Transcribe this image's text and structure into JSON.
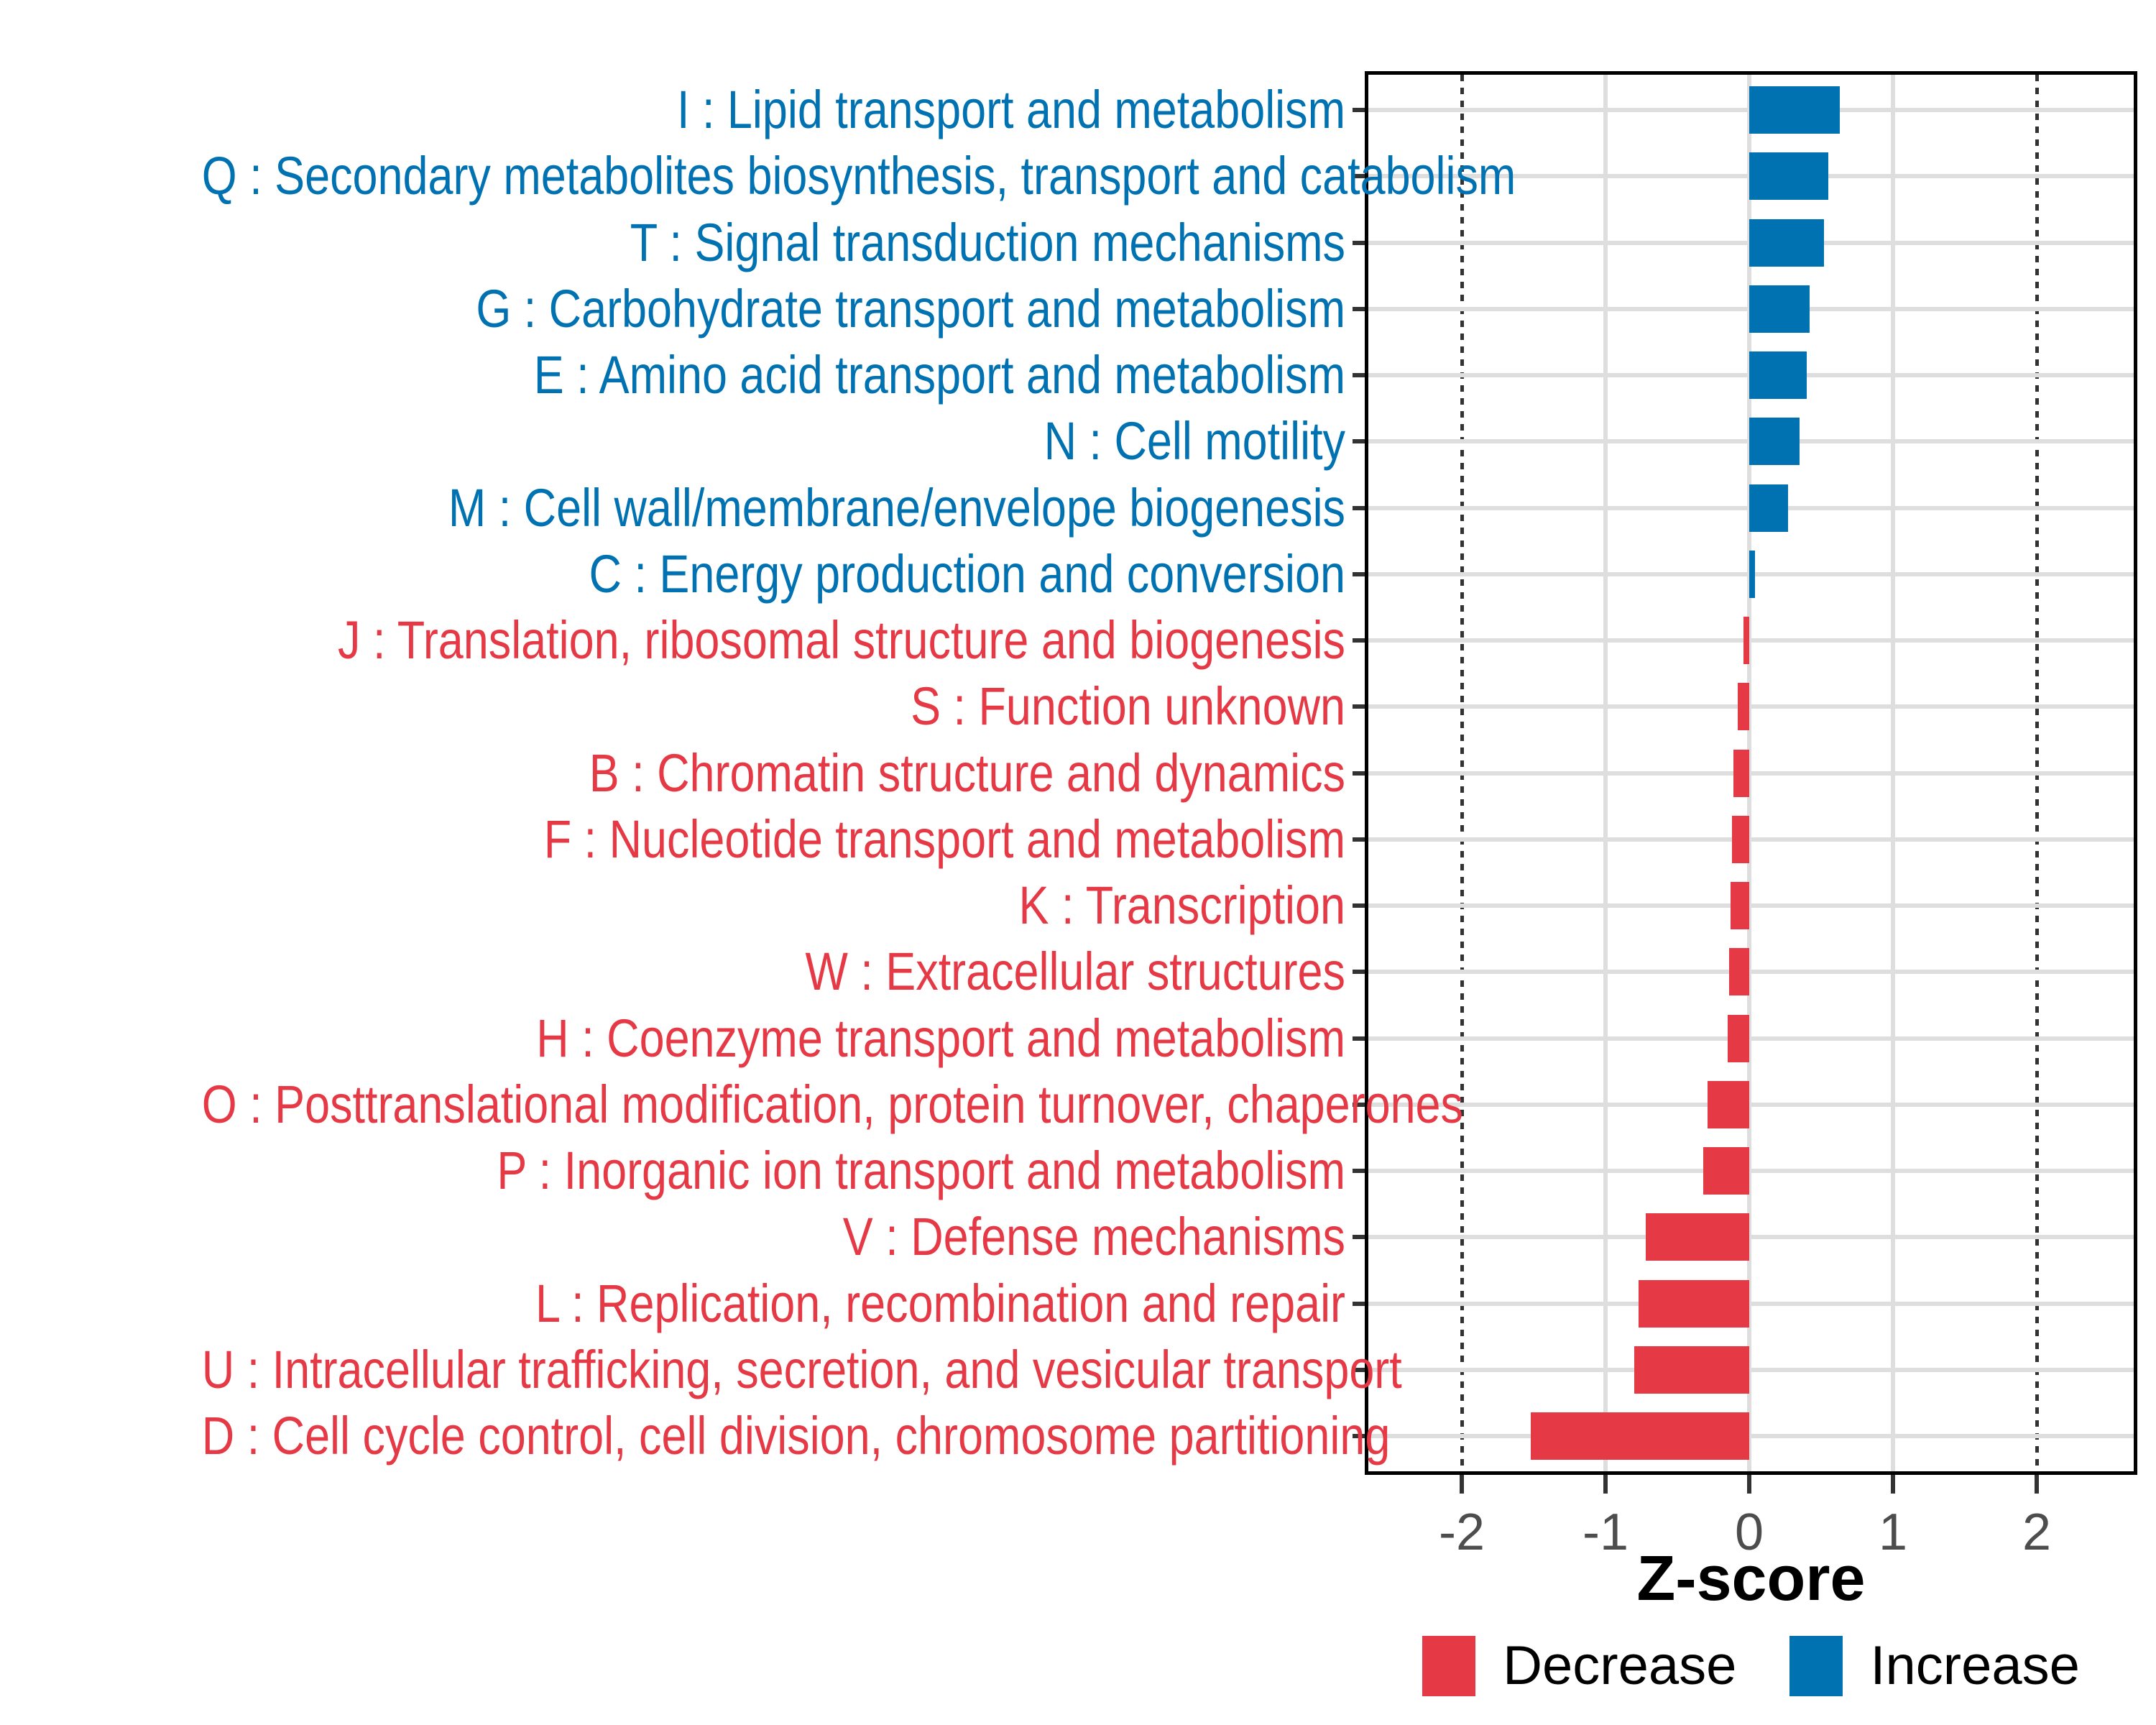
{
  "figure": {
    "background": "#FFFFFF",
    "axis_title": "Z-score",
    "legend": [
      {
        "label": "Decrease",
        "color": "#E63946"
      },
      {
        "label": "Increase",
        "color": "#0072B2"
      }
    ]
  },
  "colors": {
    "increase": "#0072B2",
    "decrease": "#E63946",
    "gridline": "#DEDEDE",
    "reference_line": "#333333",
    "tick_mark": "#333333",
    "tick_text": "#4D4D4D",
    "panel_border": "#000000"
  },
  "chart_data": {
    "type": "bar",
    "orientation": "horizontal",
    "title": "",
    "xlabel": "Z-score",
    "ylabel": "",
    "xlim": [
      -2.67,
      2.67
    ],
    "x_ticks": [
      -2,
      -1,
      0,
      1,
      2
    ],
    "x_tick_labels": [
      "-2",
      "-1",
      "0",
      "1",
      "2"
    ],
    "grid_x": [
      -1,
      0,
      1
    ],
    "reference_lines_x": [
      -2,
      2
    ],
    "grid": "on",
    "legend_position": "bottom",
    "legend_entries": [
      "Decrease",
      "Increase"
    ],
    "items": [
      {
        "code": "I",
        "label": "I : Lipid transport and metabolism",
        "value": 0.63,
        "direction": "Increase"
      },
      {
        "code": "Q",
        "label": "Q : Secondary metabolites biosynthesis, transport and catabolism",
        "value": 0.55,
        "direction": "Increase"
      },
      {
        "code": "T",
        "label": "T : Signal transduction mechanisms",
        "value": 0.52,
        "direction": "Increase"
      },
      {
        "code": "G",
        "label": "G : Carbohydrate transport and metabolism",
        "value": 0.42,
        "direction": "Increase"
      },
      {
        "code": "E",
        "label": "E : Amino acid transport and metabolism",
        "value": 0.4,
        "direction": "Increase"
      },
      {
        "code": "N",
        "label": "N : Cell motility",
        "value": 0.35,
        "direction": "Increase"
      },
      {
        "code": "M",
        "label": "M : Cell wall/membrane/envelope biogenesis",
        "value": 0.27,
        "direction": "Increase"
      },
      {
        "code": "C",
        "label": "C : Energy production and conversion",
        "value": 0.04,
        "direction": "Increase"
      },
      {
        "code": "J",
        "label": "J : Translation, ribosomal structure and biogenesis",
        "value": -0.04,
        "direction": "Decrease"
      },
      {
        "code": "S",
        "label": "S : Function unknown",
        "value": -0.08,
        "direction": "Decrease"
      },
      {
        "code": "B",
        "label": "B : Chromatin structure and dynamics",
        "value": -0.11,
        "direction": "Decrease"
      },
      {
        "code": "F",
        "label": "F : Nucleotide transport and metabolism",
        "value": -0.12,
        "direction": "Decrease"
      },
      {
        "code": "K",
        "label": "K : Transcription",
        "value": -0.13,
        "direction": "Decrease"
      },
      {
        "code": "W",
        "label": "W : Extracellular structures",
        "value": -0.14,
        "direction": "Decrease"
      },
      {
        "code": "H",
        "label": "H : Coenzyme transport and metabolism",
        "value": -0.15,
        "direction": "Decrease"
      },
      {
        "code": "O",
        "label": "O : Posttranslational modification, protein turnover, chaperones",
        "value": -0.29,
        "direction": "Decrease"
      },
      {
        "code": "P",
        "label": "P : Inorganic ion transport and metabolism",
        "value": -0.32,
        "direction": "Decrease"
      },
      {
        "code": "V",
        "label": "V : Defense mechanisms",
        "value": -0.72,
        "direction": "Decrease"
      },
      {
        "code": "L",
        "label": "L : Replication, recombination and repair",
        "value": -0.77,
        "direction": "Decrease"
      },
      {
        "code": "U",
        "label": "U : Intracellular trafficking, secretion, and vesicular transport",
        "value": -0.8,
        "direction": "Decrease"
      },
      {
        "code": "D",
        "label": "D : Cell cycle control, cell division, chromosome partitioning",
        "value": -1.52,
        "direction": "Decrease"
      }
    ]
  }
}
